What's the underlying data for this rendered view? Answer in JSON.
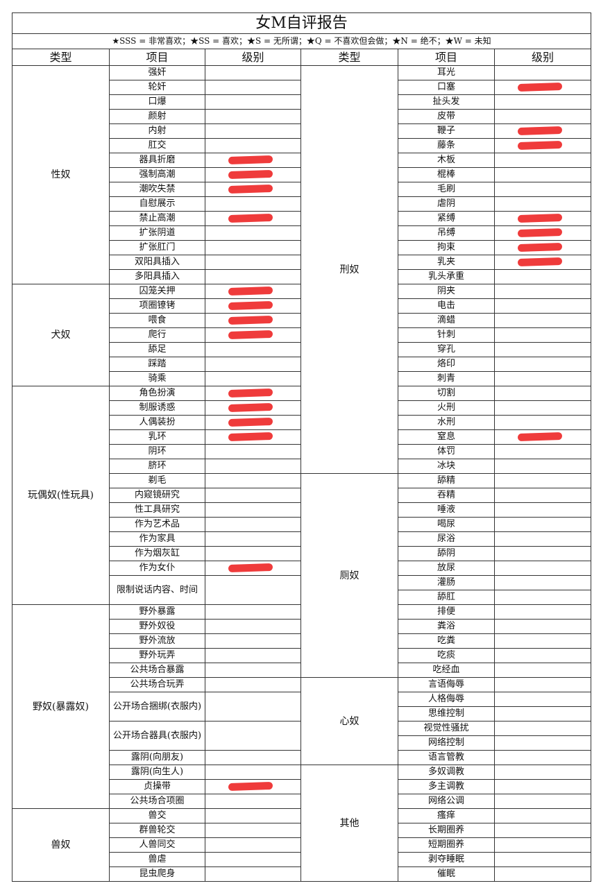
{
  "title": "女M自评报告",
  "legend": "★SSS = 非常喜欢；★SS = 喜欢；★S = 无所谓；★Q = 不喜欢但会做；★N = 绝不；★W = 未知",
  "headers": {
    "type": "类型",
    "item": "项目",
    "level": "级别"
  },
  "mark_color": "#ef3b3b",
  "left_groups": [
    {
      "type": "性奴",
      "items": [
        {
          "name": "强奸"
        },
        {
          "name": "轮奸"
        },
        {
          "name": "口爆"
        },
        {
          "name": "颜射"
        },
        {
          "name": "内射"
        },
        {
          "name": "肛交"
        },
        {
          "name": "器具折磨",
          "marked": true
        },
        {
          "name": "强制高潮",
          "marked": true
        },
        {
          "name": "潮吹失禁",
          "marked": true
        },
        {
          "name": "自慰展示"
        },
        {
          "name": "禁止高潮",
          "marked": true
        },
        {
          "name": "扩张阴道"
        },
        {
          "name": "扩张肛门"
        },
        {
          "name": "双阳具插入"
        },
        {
          "name": "多阳具插入"
        }
      ]
    },
    {
      "type": "犬奴",
      "items": [
        {
          "name": "囚笼关押",
          "marked": true
        },
        {
          "name": "项圈镣铐",
          "marked": true
        },
        {
          "name": "喂食",
          "marked": true
        },
        {
          "name": "爬行",
          "marked": true
        },
        {
          "name": "舔足"
        },
        {
          "name": "踩踏"
        },
        {
          "name": "骑乘"
        }
      ]
    },
    {
      "type": "玩偶奴(性玩具)",
      "items": [
        {
          "name": "角色扮演",
          "marked": true
        },
        {
          "name": "制服诱惑",
          "marked": true
        },
        {
          "name": "人偶装扮",
          "marked": true
        },
        {
          "name": "乳环",
          "marked": true
        },
        {
          "name": "阴环"
        },
        {
          "name": "脐环"
        },
        {
          "name": "剃毛"
        },
        {
          "name": "内窥镜研究"
        },
        {
          "name": "性工具研究"
        },
        {
          "name": "作为艺术品"
        },
        {
          "name": "作为家具"
        },
        {
          "name": "作为烟灰缸"
        },
        {
          "name": "作为女仆",
          "marked": true
        },
        {
          "name": "限制说话内容、时间",
          "tall": true
        }
      ]
    },
    {
      "type": "野奴(暴露奴)",
      "items": [
        {
          "name": "野外暴露"
        },
        {
          "name": "野外奴役"
        },
        {
          "name": "野外流放"
        },
        {
          "name": "野外玩弄"
        },
        {
          "name": "公共场合暴露"
        },
        {
          "name": "公共场合玩弄"
        },
        {
          "name": "公开场合捆绑(衣服内)",
          "tall": true
        },
        {
          "name": "公开场合器具(衣服内)",
          "tall": true
        },
        {
          "name": "露阴(向朋友)"
        },
        {
          "name": "露阴(向生人)"
        },
        {
          "name": "贞操带",
          "marked": true
        },
        {
          "name": "公共场合项圈"
        }
      ]
    },
    {
      "type": "兽奴",
      "items": [
        {
          "name": "兽交"
        },
        {
          "name": "群兽轮交"
        },
        {
          "name": "人兽同交"
        },
        {
          "name": "兽虐"
        },
        {
          "name": "昆虫爬身"
        }
      ]
    }
  ],
  "right_groups": [
    {
      "type": "刑奴",
      "items": [
        {
          "name": "耳光"
        },
        {
          "name": "口塞",
          "marked": true
        },
        {
          "name": "扯头发"
        },
        {
          "name": "皮带"
        },
        {
          "name": "鞭子",
          "marked": true
        },
        {
          "name": "藤条",
          "marked": true
        },
        {
          "name": "木板"
        },
        {
          "name": "棍棒"
        },
        {
          "name": "毛刷"
        },
        {
          "name": "虐阴"
        },
        {
          "name": "紧缚",
          "marked": true
        },
        {
          "name": "吊缚",
          "marked": true
        },
        {
          "name": "拘束",
          "marked": true
        },
        {
          "name": "乳夹",
          "marked": true
        },
        {
          "name": "乳头承重"
        },
        {
          "name": "阴夹"
        },
        {
          "name": "电击"
        },
        {
          "name": "滴蜡"
        },
        {
          "name": "针刺"
        },
        {
          "name": "穿孔"
        },
        {
          "name": "烙印"
        },
        {
          "name": "刺青"
        },
        {
          "name": "切割"
        },
        {
          "name": "火刑"
        },
        {
          "name": "水刑"
        },
        {
          "name": "窒息",
          "marked": true
        },
        {
          "name": "体罚"
        },
        {
          "name": "冰块"
        }
      ]
    },
    {
      "type": "厕奴",
      "items": [
        {
          "name": "舔精"
        },
        {
          "name": "吞精"
        },
        {
          "name": "唾液"
        },
        {
          "name": "喝尿"
        },
        {
          "name": "尿浴"
        },
        {
          "name": "舔阴"
        },
        {
          "name": "放尿"
        },
        {
          "name": "灌肠"
        },
        {
          "name": "舔肛"
        },
        {
          "name": "排便"
        },
        {
          "name": "粪浴"
        },
        {
          "name": "吃粪"
        },
        {
          "name": "吃痰"
        },
        {
          "name": "吃经血"
        }
      ]
    },
    {
      "type": "心奴",
      "items": [
        {
          "name": "言语侮辱"
        },
        {
          "name": "人格侮辱"
        },
        {
          "name": "思维控制"
        },
        {
          "name": "视觉性骚扰"
        },
        {
          "name": "网络控制"
        },
        {
          "name": "语言管教"
        }
      ]
    },
    {
      "type": "其他",
      "items": [
        {
          "name": "多奴调教"
        },
        {
          "name": "多主调教"
        },
        {
          "name": "网络公调"
        },
        {
          "name": "瘙痒"
        },
        {
          "name": "长期圈养"
        },
        {
          "name": "短期圈养"
        },
        {
          "name": "剥夺睡眠"
        },
        {
          "name": "催眠"
        }
      ]
    }
  ]
}
